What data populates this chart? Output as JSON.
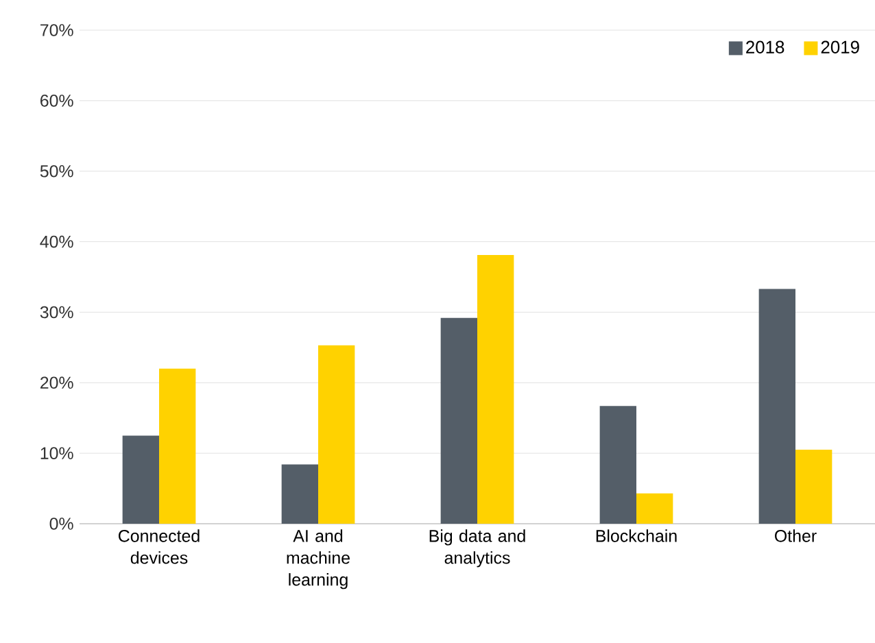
{
  "chart_data": {
    "type": "bar",
    "categories": [
      "Connected devices",
      "AI and machine learning",
      "Big data and analytics",
      "Blockchain",
      "Other"
    ],
    "series": [
      {
        "name": "2018",
        "color": "#545e68",
        "values": [
          12.5,
          8.4,
          29.2,
          16.7,
          33.3
        ]
      },
      {
        "name": "2019",
        "color": "#ffd200",
        "values": [
          22.0,
          25.3,
          38.1,
          4.3,
          10.5
        ]
      }
    ],
    "ylim": [
      0,
      70
    ],
    "yticks": [
      {
        "value": 0,
        "label": "0%"
      },
      {
        "value": 10,
        "label": "10%"
      },
      {
        "value": 20,
        "label": "20%"
      },
      {
        "value": 30,
        "label": "30%"
      },
      {
        "value": 40,
        "label": "40%"
      },
      {
        "value": 50,
        "label": "50%"
      },
      {
        "value": 60,
        "label": "60%"
      },
      {
        "value": 70,
        "label": "70%"
      }
    ],
    "grid": "y",
    "legend": "top right"
  }
}
